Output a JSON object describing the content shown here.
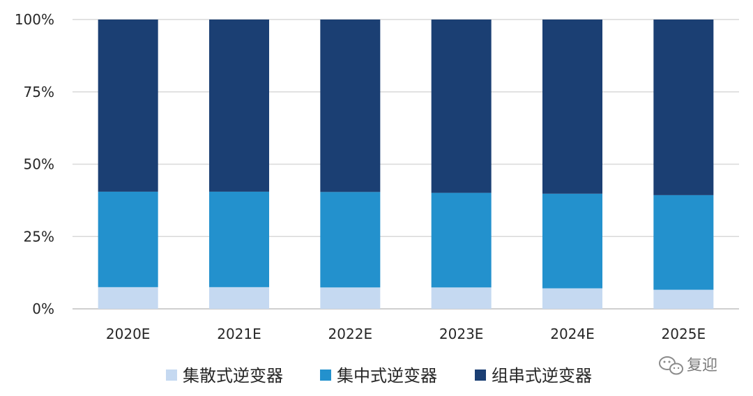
{
  "chart_data": {
    "type": "bar",
    "stacked": true,
    "categories": [
      "2020E",
      "2021E",
      "2022E",
      "2023E",
      "2024E",
      "2025E"
    ],
    "series": [
      {
        "name": "集散式逆变器",
        "color": "#c5d9f1",
        "values": [
          7.5,
          7.5,
          7.4,
          7.4,
          7.1,
          6.6
        ]
      },
      {
        "name": "集中式逆变器",
        "color": "#2391cd",
        "values": [
          33.0,
          33.0,
          33.0,
          32.7,
          32.7,
          32.7
        ]
      },
      {
        "name": "组串式逆变器",
        "color": "#1b3f73",
        "values": [
          59.5,
          59.5,
          59.6,
          59.9,
          60.2,
          60.7
        ]
      }
    ],
    "yticks": [
      "0%",
      "25%",
      "50%",
      "75%",
      "100%"
    ],
    "ylim": [
      0,
      100
    ],
    "grid": true,
    "legend_position": "bottom"
  },
  "watermark": {
    "text": "复迎",
    "icon": "wechat-icon"
  }
}
